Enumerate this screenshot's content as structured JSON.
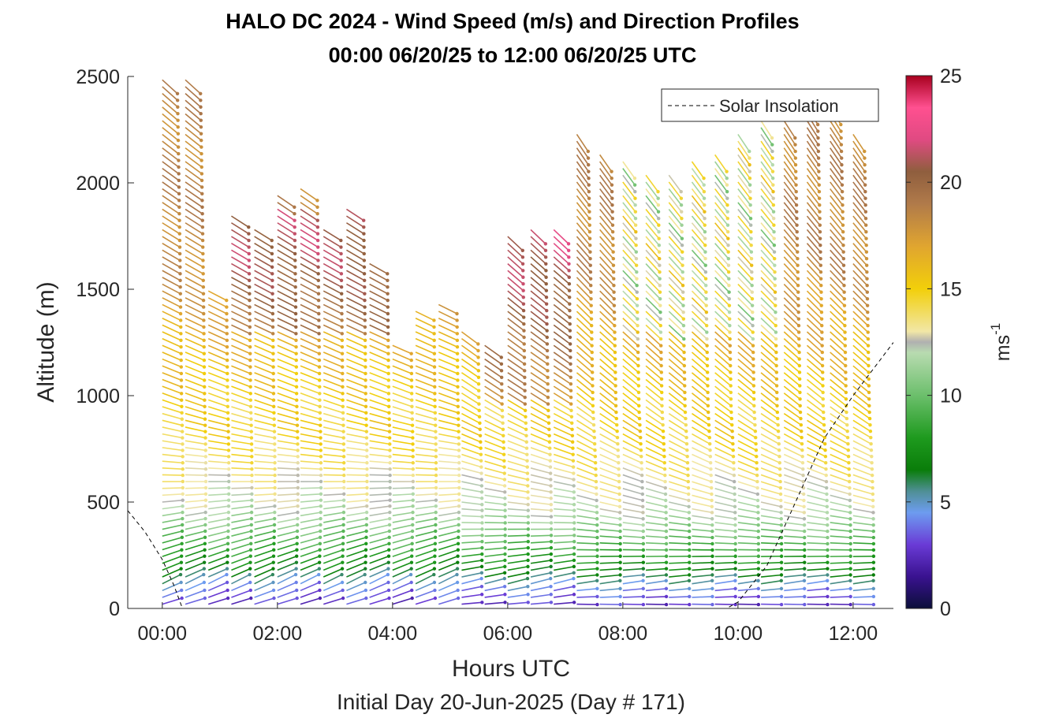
{
  "chart_data": {
    "type": "wind-barb-profile",
    "title": "HALO DC 2024 - Wind Speed (m/s) and Direction Profiles",
    "subtitle": "00:00 06/20/25 to 12:00 06/20/25  UTC",
    "xlabel": "Hours UTC",
    "xlabel2": "Initial Day 20-Jun-2025 (Day # 171)",
    "ylabel": "Altitude (m)",
    "xlim": [
      -0.6,
      12.7
    ],
    "ylim": [
      0,
      2500
    ],
    "xticks": [
      0,
      2,
      4,
      6,
      8,
      10,
      12
    ],
    "xtick_labels": [
      "00:00",
      "02:00",
      "04:00",
      "06:00",
      "08:00",
      "10:00",
      "12:00"
    ],
    "yticks": [
      0,
      500,
      1000,
      1500,
      2000,
      2500
    ],
    "ytick_labels": [
      "0",
      "500",
      "1000",
      "1500",
      "2000",
      "2500"
    ],
    "colorbar": {
      "label": "ms",
      "label_exp": "-1",
      "range": [
        0,
        25
      ],
      "ticks": [
        0,
        5,
        10,
        15,
        20,
        25
      ],
      "tick_labels": [
        "0",
        "5",
        "10",
        "15",
        "20",
        "25"
      ],
      "color_stops": [
        [
          0,
          "#0b0f3a"
        ],
        [
          1.5,
          "#3a1290"
        ],
        [
          3,
          "#6a3bd6"
        ],
        [
          4.5,
          "#6d9cf0"
        ],
        [
          5.5,
          "#4f8f95"
        ],
        [
          6.5,
          "#0a7d0a"
        ],
        [
          8,
          "#1e9a1e"
        ],
        [
          10,
          "#6cbf6c"
        ],
        [
          12,
          "#b8dbb0"
        ],
        [
          12.5,
          "#b0b0b0"
        ],
        [
          13,
          "#f2e7a6"
        ],
        [
          15,
          "#f2cf0a"
        ],
        [
          17,
          "#e0a530"
        ],
        [
          19,
          "#b07a4a"
        ],
        [
          20.5,
          "#8f5e3e"
        ],
        [
          22,
          "#e04a82"
        ],
        [
          23.5,
          "#ff5090"
        ],
        [
          25,
          "#a8001e"
        ]
      ]
    },
    "legend": {
      "entries": [
        "Solar Insolation"
      ],
      "location": "top-right"
    },
    "profile_times_hours": [
      0,
      0.4,
      0.8,
      1.2,
      1.6,
      2.0,
      2.4,
      2.8,
      3.2,
      3.6,
      4.0,
      4.4,
      4.8,
      5.2,
      5.6,
      6.0,
      6.4,
      6.8,
      7.2,
      7.6,
      8.0,
      8.4,
      8.8,
      9.2,
      9.6,
      10.0,
      10.4,
      10.8,
      11.2,
      11.6,
      12.0
    ],
    "profile_top_altitude_m": [
      2500,
      2500,
      1500,
      1850,
      1800,
      1950,
      2000,
      1800,
      1900,
      1650,
      1250,
      1400,
      1450,
      1300,
      1250,
      1750,
      1800,
      1800,
      2250,
      2150,
      2100,
      2050,
      2050,
      2100,
      2150,
      2250,
      2300,
      2300,
      2400,
      2450,
      2250
    ],
    "level_spacing_m": 32,
    "series": [
      {
        "name": "Solar Insolation",
        "x": [
          -0.6,
          -0.3,
          0.0,
          0.2,
          0.35,
          1.0,
          3.0,
          6.0,
          9.0,
          9.8,
          10.0,
          10.5,
          11.0,
          11.5,
          12.0,
          12.7
        ],
        "y": [
          460,
          360,
          230,
          110,
          0,
          0,
          0,
          0,
          0,
          0,
          30,
          200,
          500,
          800,
          1000,
          1250
        ]
      }
    ]
  }
}
